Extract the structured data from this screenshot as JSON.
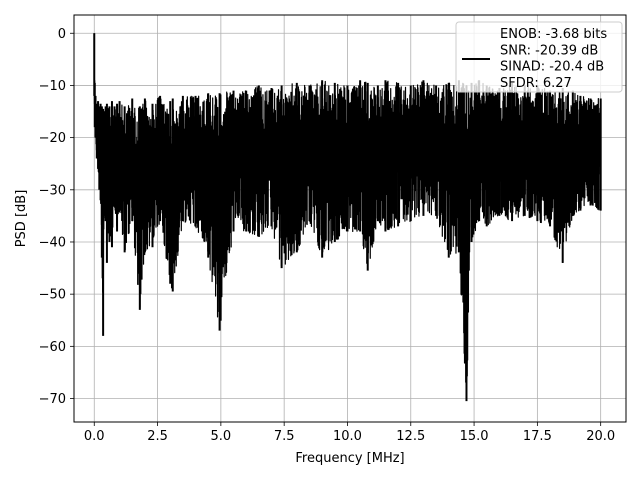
{
  "chart_data": {
    "type": "line",
    "title": "",
    "xlabel": "Frequency [MHz]",
    "ylabel": "PSD [dB]",
    "xlim": [
      -0.8,
      21.0
    ],
    "ylim": [
      -74.5,
      3.5
    ],
    "xticks": [
      0.0,
      2.5,
      5.0,
      7.5,
      10.0,
      12.5,
      15.0,
      17.5,
      20.0
    ],
    "xtick_labels": [
      "0.0",
      "2.5",
      "5.0",
      "7.5",
      "10.0",
      "12.5",
      "15.0",
      "17.5",
      "20.0"
    ],
    "yticks": [
      0,
      -10,
      -20,
      -30,
      -40,
      -50,
      -60,
      -70
    ],
    "ytick_labels": [
      "0",
      "−10",
      "−20",
      "−30",
      "−40",
      "−50",
      "−60",
      "−70"
    ],
    "grid": true,
    "legend": {
      "placement": "top-right",
      "lines": [
        "ENOB: -3.68 bits",
        "SNR: -20.39 dB",
        "SINAD: -20.4 dB",
        "SFDR: 6.27"
      ]
    },
    "series": [
      {
        "color": "#000000",
        "x": [
          0.0,
          0.02,
          0.05,
          0.1,
          0.15,
          0.2,
          0.25,
          0.3,
          0.35,
          0.4,
          0.45,
          0.5,
          0.6,
          0.7,
          0.8,
          0.9,
          1.0,
          1.2,
          1.5,
          1.8,
          2.0,
          2.3,
          2.6,
          3.0,
          3.1,
          3.5,
          4.0,
          4.5,
          4.95,
          5.5,
          6.0,
          6.5,
          7.0,
          7.4,
          8.0,
          8.5,
          9.0,
          9.5,
          10.0,
          10.5,
          10.8,
          11.2,
          11.5,
          12.0,
          12.5,
          13.0,
          13.5,
          14.0,
          14.4,
          14.7,
          14.9,
          15.2,
          15.5,
          16.0,
          16.5,
          17.0,
          17.5,
          18.0,
          18.5,
          18.9,
          19.2,
          19.6,
          20.0
        ],
        "y_upper": [
          0,
          -9.5,
          -12,
          -13.5,
          -13,
          -14,
          -13.5,
          -14,
          -14.5,
          -15,
          -14,
          -13.5,
          -14,
          -13,
          -14,
          -13.5,
          -13,
          -14,
          -12.5,
          -14,
          -12.5,
          -13.5,
          -12,
          -13,
          -12.5,
          -12,
          -12,
          -11.5,
          -11.5,
          -11,
          -11,
          -10,
          -10.5,
          -10,
          -9.5,
          -10,
          -9,
          -9.5,
          -10,
          -9,
          -9.5,
          -10,
          -9,
          -9.5,
          -10,
          -9,
          -10,
          -9.5,
          -9,
          -10,
          -9.5,
          -9,
          -10,
          -10.5,
          -9.5,
          -10,
          -10,
          -11,
          -10.5,
          -11,
          -12,
          -12.5,
          -12.5
        ],
        "y_lower": [
          -12,
          -18,
          -20,
          -24,
          -26,
          -30,
          -32,
          -43,
          -58,
          -35,
          -36,
          -44,
          -40,
          -41,
          -33,
          -38,
          -34,
          -42,
          -36,
          -53,
          -42,
          -41,
          -36,
          -48,
          -49.5,
          -36,
          -37,
          -43,
          -57,
          -38,
          -38,
          -39,
          -37,
          -45,
          -42,
          -36,
          -43,
          -40,
          -38,
          -38,
          -45.5,
          -36,
          -38,
          -37,
          -36,
          -35,
          -35,
          -43,
          -42,
          -70.5,
          -40,
          -36,
          -37,
          -35,
          -36,
          -35,
          -36,
          -37,
          -44,
          -35,
          -34,
          -33,
          -34
        ]
      }
    ]
  }
}
